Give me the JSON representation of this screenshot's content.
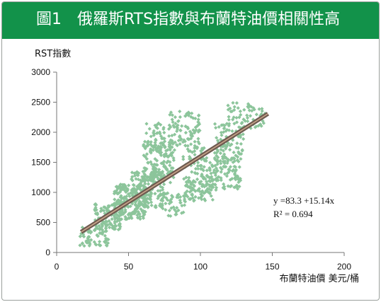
{
  "banner": {
    "title": "圖1　俄羅斯RTS指數與布蘭特油價相關性高",
    "color": "#12924a"
  },
  "chart_data": {
    "type": "scatter",
    "title": "圖1　俄羅斯RTS指數與布蘭特油價相關性高",
    "xlabel": "布蘭特油價 美元/桶",
    "ylabel": "RST指數",
    "xlim": [
      0,
      200
    ],
    "ylim": [
      0,
      3000
    ],
    "xticks": [
      "0",
      "50",
      "100",
      "150",
      "200"
    ],
    "yticks": [
      "0",
      "500",
      "1000",
      "1500",
      "2000",
      "2500",
      "3000"
    ],
    "grid": false,
    "marker_color": "#8cc59b",
    "trendline": {
      "intercept": 83.3,
      "slope": 15.14,
      "x_range": [
        17,
        147
      ],
      "color": "#6e5a50",
      "equation": "y =83.3 +15.14x",
      "r_squared": "R² = 0.694"
    },
    "clusters": [
      {
        "x": [
          16,
          36
        ],
        "y": [
          100,
          480
        ],
        "n": 70
      },
      {
        "x": [
          26,
          46
        ],
        "y": [
          380,
          820
        ],
        "n": 120
      },
      {
        "x": [
          40,
          62
        ],
        "y": [
          550,
          1150
        ],
        "n": 210
      },
      {
        "x": [
          52,
          75
        ],
        "y": [
          750,
          1350
        ],
        "n": 170
      },
      {
        "x": [
          60,
          82
        ],
        "y": [
          1150,
          1850
        ],
        "n": 140
      },
      {
        "x": [
          62,
          75
        ],
        "y": [
          1700,
          2150
        ],
        "n": 45
      },
      {
        "x": [
          78,
          100
        ],
        "y": [
          1750,
          2350
        ],
        "n": 90
      },
      {
        "x": [
          88,
          103
        ],
        "y": [
          1300,
          1850
        ],
        "n": 50
      },
      {
        "x": [
          72,
          90
        ],
        "y": [
          600,
          1000
        ],
        "n": 45
      },
      {
        "x": [
          88,
          112
        ],
        "y": [
          850,
          1250
        ],
        "n": 90
      },
      {
        "x": [
          100,
          128
        ],
        "y": [
          1050,
          1600
        ],
        "n": 130
      },
      {
        "x": [
          110,
          130
        ],
        "y": [
          1500,
          2150
        ],
        "n": 90
      },
      {
        "x": [
          118,
          145
        ],
        "y": [
          2050,
          2500
        ],
        "n": 60
      }
    ]
  }
}
